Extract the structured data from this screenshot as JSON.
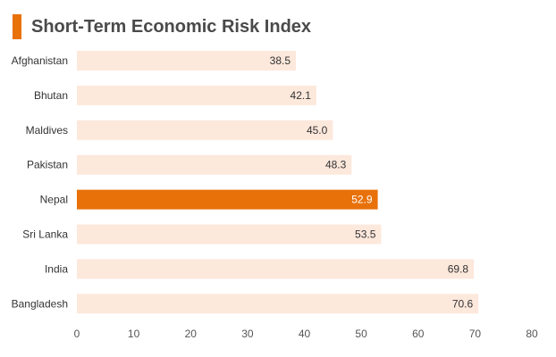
{
  "chart_data": {
    "type": "bar",
    "orientation": "horizontal",
    "title": "Short-Term Economic Risk Index",
    "categories": [
      "Afghanistan",
      "Bhutan",
      "Maldives",
      "Pakistan",
      "Nepal",
      "Sri Lanka",
      "India",
      "Bangladesh"
    ],
    "values": [
      38.5,
      42.1,
      45.0,
      48.3,
      52.9,
      53.5,
      69.8,
      70.6
    ],
    "value_labels": [
      "38.5",
      "42.1",
      "45.0",
      "48.3",
      "52.9",
      "53.5",
      "69.8",
      "70.6"
    ],
    "highlight_category": "Nepal",
    "xlim": [
      0,
      80
    ],
    "xticks": [
      0,
      10,
      20,
      30,
      40,
      50,
      60,
      70,
      80
    ],
    "xlabel": "",
    "ylabel": "",
    "grid": false,
    "legend": "none",
    "colors": {
      "accent": "#e8710a",
      "bar": "#fde8dc",
      "highlight_bar": "#e8710a",
      "label_text": "#333333",
      "highlight_label_text": "#ffffff"
    }
  }
}
